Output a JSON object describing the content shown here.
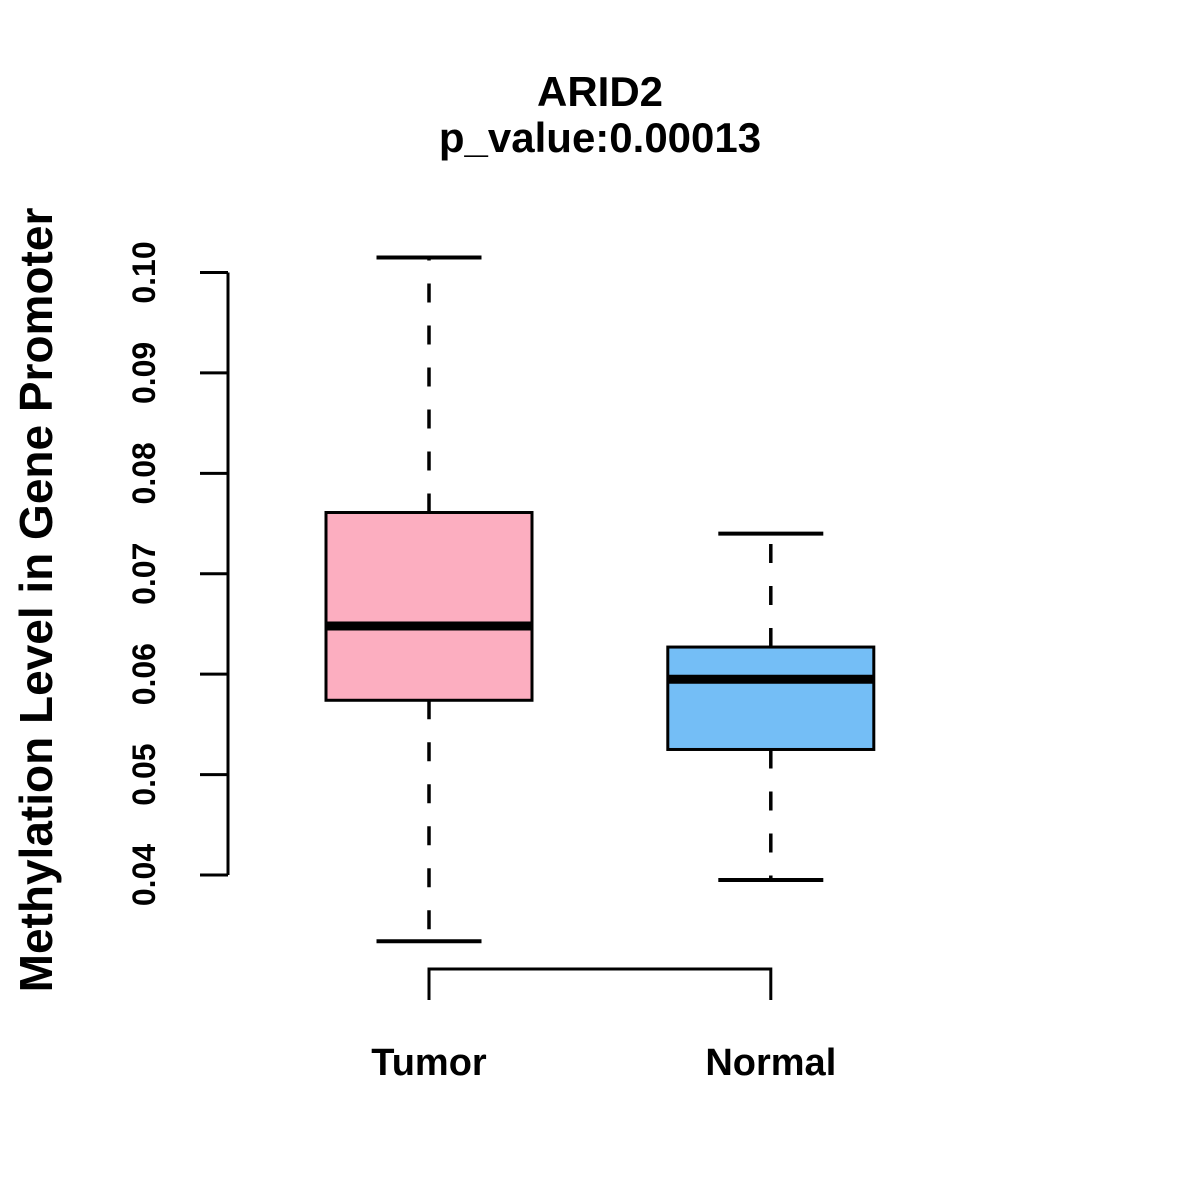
{
  "chart_data": {
    "type": "boxplot",
    "title": "ARID2",
    "subtitle": "p_value:0.00013",
    "ylabel": "Methylation Level in Gene Promoter",
    "xlabel": "",
    "legend": "none",
    "grid": false,
    "whisker_style": "dashed",
    "ylim_axis": [
      0.04,
      0.1
    ],
    "ytick_values": [
      0.04,
      0.05,
      0.06,
      0.07,
      0.08,
      0.09,
      0.1
    ],
    "ytick_labels": [
      "0.04",
      "0.05",
      "0.06",
      "0.07",
      "0.08",
      "0.09",
      "0.10"
    ],
    "categories": [
      "Tumor",
      "Normal"
    ],
    "groups": [
      {
        "label": "Tumor",
        "box_color": "#FCAEC0",
        "stats": {
          "whisker_low": 0.0334,
          "q1": 0.0574,
          "median": 0.0648,
          "q3": 0.0761,
          "whisker_high": 0.1015
        }
      },
      {
        "label": "Normal",
        "box_color": "#74BEF6",
        "stats": {
          "whisker_low": 0.0395,
          "q1": 0.0525,
          "median": 0.0595,
          "q3": 0.0627,
          "whisker_high": 0.074
        }
      }
    ],
    "colors": {
      "line": "#000000",
      "text": "#000000",
      "background": "#FFFFFF"
    }
  }
}
